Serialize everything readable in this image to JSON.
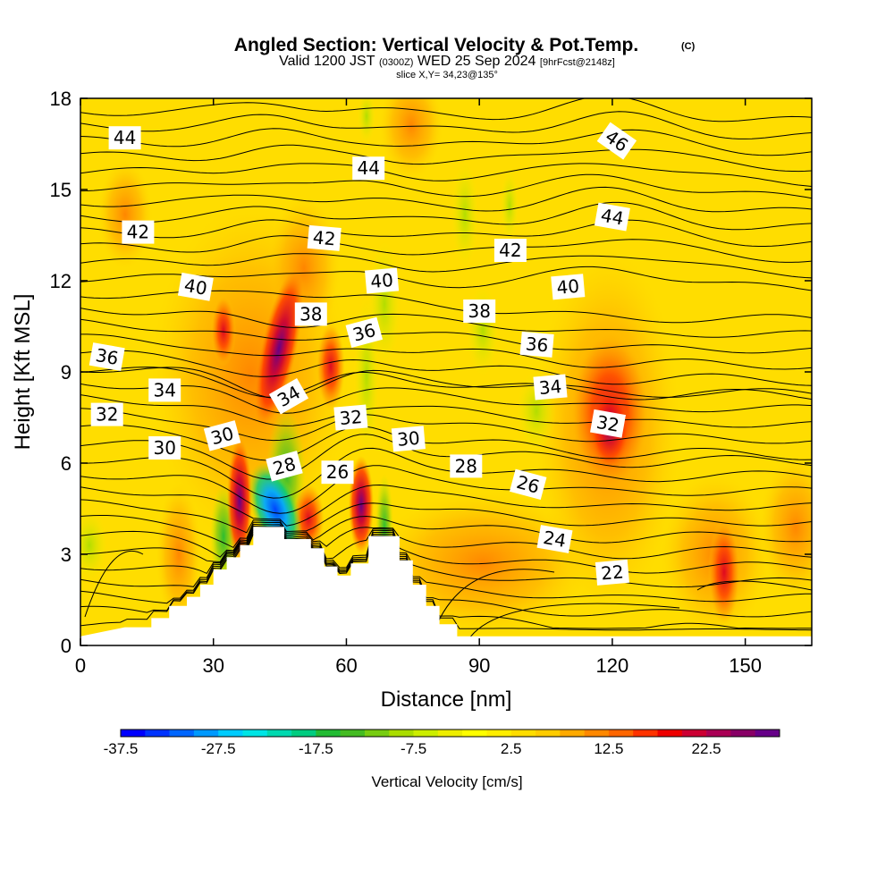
{
  "header": {
    "title": "Angled Section: Vertical Velocity & Pot.Temp.",
    "title_mark": "(C)",
    "valid_prefix": "Valid 1200 JST",
    "valid_utc": "(0300Z)",
    "valid_date": "WED 25 Sep 2024",
    "forecast": "[9hrFcst@2148z]",
    "slice": "slice X,Y= 34,23@135°"
  },
  "colors": {
    "frame": "#000000",
    "terrain": "#ffffff",
    "contour": "#000000",
    "label_box": "#ffffff"
  },
  "chart_data": {
    "type": "heatmap",
    "xlabel": "Distance [nm]",
    "ylabel": "Height [Kft MSL]",
    "xlim": [
      0,
      165
    ],
    "ylim": [
      0,
      18
    ],
    "xticks": [
      0,
      30,
      60,
      90,
      120,
      150
    ],
    "yticks": [
      0,
      3,
      6,
      9,
      12,
      15,
      18
    ],
    "fill_variable": "Vertical Velocity [cm/s]",
    "contour_variable": "Potential Temperature",
    "colorbar": {
      "label": "Vertical Velocity [cm/s]",
      "ticks": [
        "-37.5",
        "-27.5",
        "-17.5",
        "-7.5",
        "2.5",
        "12.5",
        "22.5"
      ],
      "levels": [
        -37.5,
        -35,
        -32.5,
        -30,
        -27.5,
        -25,
        -22.5,
        -20,
        -17.5,
        -15,
        -12.5,
        -10,
        -7.5,
        -5,
        -2.5,
        0,
        2.5,
        5,
        7.5,
        10,
        12.5,
        15,
        17.5,
        20,
        22.5,
        25,
        27.5
      ],
      "colors": [
        "#0000ff",
        "#0033ff",
        "#0066ff",
        "#0099ff",
        "#00ccff",
        "#00e5e5",
        "#00d9b0",
        "#00cc80",
        "#22bb33",
        "#44bb22",
        "#77cc11",
        "#aadd00",
        "#ccee00",
        "#eeee00",
        "#ffff00",
        "#ffee00",
        "#ffdd00",
        "#ffcc00",
        "#ffaa00",
        "#ff8800",
        "#ff6600",
        "#ff3300",
        "#ee0000",
        "#cc0033",
        "#aa0055",
        "#880066",
        "#660088"
      ]
    },
    "terrain_heights": [
      [
        0,
        0.3
      ],
      [
        10,
        0.6
      ],
      [
        16,
        0.6
      ],
      [
        16,
        0.9
      ],
      [
        20,
        0.9
      ],
      [
        20,
        1.3
      ],
      [
        24,
        1.3
      ],
      [
        24,
        1.6
      ],
      [
        27,
        1.6
      ],
      [
        27,
        2.0
      ],
      [
        30,
        2.0
      ],
      [
        30,
        2.5
      ],
      [
        33,
        2.5
      ],
      [
        33,
        2.9
      ],
      [
        36,
        2.9
      ],
      [
        36,
        3.3
      ],
      [
        39,
        3.3
      ],
      [
        39,
        3.9
      ],
      [
        46,
        3.9
      ],
      [
        46,
        3.5
      ],
      [
        52,
        3.5
      ],
      [
        52,
        3.2
      ],
      [
        55,
        3.2
      ],
      [
        55,
        2.6
      ],
      [
        58,
        2.6
      ],
      [
        58,
        2.3
      ],
      [
        61,
        2.3
      ],
      [
        61,
        2.7
      ],
      [
        65,
        2.7
      ],
      [
        65,
        3.6
      ],
      [
        72,
        3.6
      ],
      [
        72,
        2.8
      ],
      [
        75,
        2.8
      ],
      [
        75,
        2.0
      ],
      [
        78,
        2.0
      ],
      [
        78,
        1.3
      ],
      [
        81,
        1.3
      ],
      [
        81,
        0.7
      ],
      [
        85,
        0.7
      ],
      [
        85,
        0.3
      ],
      [
        165,
        0.3
      ]
    ],
    "contour_labels": [
      {
        "text": "44",
        "x": 10,
        "y": 16.7,
        "angle": 0
      },
      {
        "text": "44",
        "x": 65,
        "y": 15.7,
        "angle": 0
      },
      {
        "text": "46",
        "x": 121,
        "y": 16.6,
        "angle": 35
      },
      {
        "text": "42",
        "x": 13,
        "y": 13.6,
        "angle": 0
      },
      {
        "text": "42",
        "x": 55,
        "y": 13.4,
        "angle": 5
      },
      {
        "text": "42",
        "x": 97,
        "y": 13.0,
        "angle": 0
      },
      {
        "text": "44",
        "x": 120,
        "y": 14.1,
        "angle": 10
      },
      {
        "text": "40",
        "x": 26,
        "y": 11.8,
        "angle": 10
      },
      {
        "text": "40",
        "x": 68,
        "y": 12.0,
        "angle": -5
      },
      {
        "text": "40",
        "x": 110,
        "y": 11.8,
        "angle": -5
      },
      {
        "text": "38",
        "x": 52,
        "y": 10.9,
        "angle": 0
      },
      {
        "text": "38",
        "x": 90,
        "y": 11.0,
        "angle": 0
      },
      {
        "text": "36",
        "x": 6,
        "y": 9.5,
        "angle": 10
      },
      {
        "text": "36",
        "x": 64,
        "y": 10.3,
        "angle": -15
      },
      {
        "text": "36",
        "x": 103,
        "y": 9.9,
        "angle": 5
      },
      {
        "text": "34",
        "x": 19,
        "y": 8.4,
        "angle": 0
      },
      {
        "text": "34",
        "x": 47,
        "y": 8.2,
        "angle": -30
      },
      {
        "text": "34",
        "x": 106,
        "y": 8.5,
        "angle": -5
      },
      {
        "text": "32",
        "x": 6,
        "y": 7.6,
        "angle": 0
      },
      {
        "text": "32",
        "x": 61,
        "y": 7.5,
        "angle": -5
      },
      {
        "text": "32",
        "x": 119,
        "y": 7.3,
        "angle": 10
      },
      {
        "text": "30",
        "x": 19,
        "y": 6.5,
        "angle": 0
      },
      {
        "text": "30",
        "x": 32,
        "y": 6.9,
        "angle": -15
      },
      {
        "text": "30",
        "x": 74,
        "y": 6.8,
        "angle": -5
      },
      {
        "text": "28",
        "x": 46,
        "y": 5.9,
        "angle": -15
      },
      {
        "text": "28",
        "x": 87,
        "y": 5.9,
        "angle": 0
      },
      {
        "text": "26",
        "x": 58,
        "y": 5.7,
        "angle": 0
      },
      {
        "text": "26",
        "x": 101,
        "y": 5.3,
        "angle": 15
      },
      {
        "text": "24",
        "x": 107,
        "y": 3.5,
        "angle": 10
      },
      {
        "text": "22",
        "x": 120,
        "y": 2.4,
        "angle": -5
      }
    ]
  }
}
